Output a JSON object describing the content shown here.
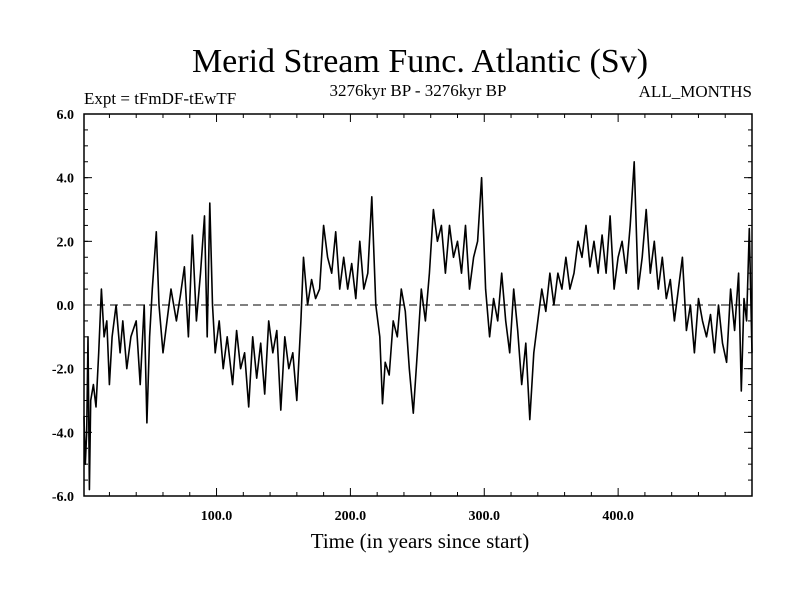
{
  "chart_data": {
    "type": "line",
    "title": "Merid Stream Func. Atlantic (Sv)",
    "subtitle_left": "Expt = tFmDF-tEwTF",
    "subtitle_center": "3276kyr BP - 3276kyr BP",
    "subtitle_right": "ALL_MONTHS",
    "xlabel": "Time (in years since start)",
    "ylabel": "",
    "xlim": [
      1,
      500
    ],
    "ylim": [
      -6,
      6
    ],
    "x_ticks": [
      100,
      200,
      300,
      400
    ],
    "x_tick_labels": [
      "100.0",
      "200.0",
      "300.0",
      "400.0"
    ],
    "y_ticks": [
      -6,
      -4,
      -2,
      0,
      2,
      4,
      6
    ],
    "y_tick_labels": [
      "-6.0",
      "-4.0",
      "-2.0",
      "0.0",
      "2.0",
      "4.0",
      "6.0"
    ],
    "zero_line": "dashed",
    "series": [
      {
        "name": "Merid Stream Func. Atlantic",
        "keypoints": [
          [
            1,
            -3.5
          ],
          [
            2,
            -5.0
          ],
          [
            3,
            -4.0
          ],
          [
            4,
            -1.0
          ],
          [
            5,
            -5.8
          ],
          [
            6,
            -3.0
          ],
          [
            8,
            -2.5
          ],
          [
            10,
            -3.2
          ],
          [
            12,
            -1.5
          ],
          [
            14,
            0.5
          ],
          [
            16,
            -1.0
          ],
          [
            18,
            -0.5
          ],
          [
            20,
            -2.5
          ],
          [
            22,
            -1.0
          ],
          [
            25,
            0.0
          ],
          [
            28,
            -1.5
          ],
          [
            30,
            -0.5
          ],
          [
            33,
            -2.0
          ],
          [
            36,
            -1.0
          ],
          [
            40,
            -0.5
          ],
          [
            43,
            -2.5
          ],
          [
            46,
            0.0
          ],
          [
            48,
            -3.7
          ],
          [
            50,
            -1.0
          ],
          [
            52,
            0.5
          ],
          [
            55,
            2.3
          ],
          [
            57,
            0.0
          ],
          [
            60,
            -1.5
          ],
          [
            63,
            -0.5
          ],
          [
            66,
            0.5
          ],
          [
            70,
            -0.5
          ],
          [
            73,
            0.3
          ],
          [
            76,
            1.2
          ],
          [
            79,
            -1.0
          ],
          [
            82,
            2.2
          ],
          [
            85,
            -0.5
          ],
          [
            88,
            1.0
          ],
          [
            91,
            2.8
          ],
          [
            93,
            -1.0
          ],
          [
            95,
            3.2
          ],
          [
            97,
            0.0
          ],
          [
            99,
            -1.5
          ],
          [
            102,
            -0.5
          ],
          [
            105,
            -2.0
          ],
          [
            108,
            -1.0
          ],
          [
            112,
            -2.5
          ],
          [
            115,
            -0.8
          ],
          [
            118,
            -2.0
          ],
          [
            121,
            -1.5
          ],
          [
            124,
            -3.2
          ],
          [
            127,
            -1.0
          ],
          [
            130,
            -2.3
          ],
          [
            133,
            -1.2
          ],
          [
            136,
            -2.8
          ],
          [
            139,
            -0.5
          ],
          [
            142,
            -1.5
          ],
          [
            145,
            -0.8
          ],
          [
            148,
            -3.3
          ],
          [
            151,
            -1.0
          ],
          [
            154,
            -2.0
          ],
          [
            157,
            -1.5
          ],
          [
            160,
            -3.0
          ],
          [
            163,
            -0.5
          ],
          [
            165,
            1.5
          ],
          [
            168,
            0.0
          ],
          [
            171,
            0.8
          ],
          [
            174,
            0.2
          ],
          [
            177,
            0.5
          ],
          [
            180,
            2.5
          ],
          [
            183,
            1.5
          ],
          [
            186,
            1.0
          ],
          [
            189,
            2.3
          ],
          [
            192,
            0.5
          ],
          [
            195,
            1.5
          ],
          [
            198,
            0.5
          ],
          [
            201,
            1.3
          ],
          [
            204,
            0.2
          ],
          [
            207,
            2.0
          ],
          [
            210,
            0.5
          ],
          [
            213,
            1.0
          ],
          [
            216,
            3.4
          ],
          [
            219,
            0.0
          ],
          [
            222,
            -1.0
          ],
          [
            224,
            -3.1
          ],
          [
            226,
            -1.8
          ],
          [
            229,
            -2.2
          ],
          [
            232,
            -0.5
          ],
          [
            235,
            -1.0
          ],
          [
            238,
            0.5
          ],
          [
            241,
            -0.2
          ],
          [
            244,
            -2.0
          ],
          [
            247,
            -3.4
          ],
          [
            250,
            -1.5
          ],
          [
            253,
            0.5
          ],
          [
            256,
            -0.5
          ],
          [
            259,
            1.0
          ],
          [
            262,
            3.0
          ],
          [
            265,
            2.0
          ],
          [
            268,
            2.5
          ],
          [
            271,
            1.0
          ],
          [
            274,
            2.5
          ],
          [
            277,
            1.5
          ],
          [
            280,
            2.0
          ],
          [
            283,
            1.0
          ],
          [
            286,
            2.5
          ],
          [
            289,
            0.5
          ],
          [
            292,
            1.5
          ],
          [
            295,
            2.0
          ],
          [
            298,
            4.0
          ],
          [
            301,
            0.5
          ],
          [
            304,
            -1.0
          ],
          [
            307,
            0.2
          ],
          [
            310,
            -0.5
          ],
          [
            313,
            1.0
          ],
          [
            316,
            -0.5
          ],
          [
            319,
            -1.5
          ],
          [
            322,
            0.5
          ],
          [
            325,
            -0.8
          ],
          [
            328,
            -2.5
          ],
          [
            331,
            -1.2
          ],
          [
            334,
            -3.6
          ],
          [
            337,
            -1.5
          ],
          [
            340,
            -0.5
          ],
          [
            343,
            0.5
          ],
          [
            346,
            -0.2
          ],
          [
            349,
            1.0
          ],
          [
            352,
            0.0
          ],
          [
            355,
            1.0
          ],
          [
            358,
            0.5
          ],
          [
            361,
            1.5
          ],
          [
            364,
            0.5
          ],
          [
            367,
            1.0
          ],
          [
            370,
            2.0
          ],
          [
            373,
            1.5
          ],
          [
            376,
            2.5
          ],
          [
            379,
            1.2
          ],
          [
            382,
            2.0
          ],
          [
            385,
            1.0
          ],
          [
            388,
            2.2
          ],
          [
            391,
            1.0
          ],
          [
            394,
            2.8
          ],
          [
            397,
            0.5
          ],
          [
            400,
            1.5
          ],
          [
            403,
            2.0
          ],
          [
            406,
            1.0
          ],
          [
            409,
            2.5
          ],
          [
            412,
            4.5
          ],
          [
            415,
            0.5
          ],
          [
            418,
            1.5
          ],
          [
            421,
            3.0
          ],
          [
            424,
            1.0
          ],
          [
            427,
            2.0
          ],
          [
            430,
            0.5
          ],
          [
            433,
            1.5
          ],
          [
            436,
            0.2
          ],
          [
            439,
            0.8
          ],
          [
            442,
            -0.5
          ],
          [
            445,
            0.5
          ],
          [
            448,
            1.5
          ],
          [
            451,
            -0.8
          ],
          [
            454,
            0.0
          ],
          [
            457,
            -1.5
          ],
          [
            460,
            0.2
          ],
          [
            463,
            -0.5
          ],
          [
            466,
            -1.0
          ],
          [
            469,
            -0.3
          ],
          [
            472,
            -1.5
          ],
          [
            475,
            0.0
          ],
          [
            478,
            -1.2
          ],
          [
            481,
            -1.8
          ],
          [
            484,
            0.5
          ],
          [
            487,
            -0.8
          ],
          [
            490,
            1.0
          ],
          [
            492,
            -2.7
          ],
          [
            494,
            0.2
          ],
          [
            496,
            -0.5
          ],
          [
            498,
            2.4
          ],
          [
            500,
            -1.5
          ]
        ]
      }
    ]
  }
}
